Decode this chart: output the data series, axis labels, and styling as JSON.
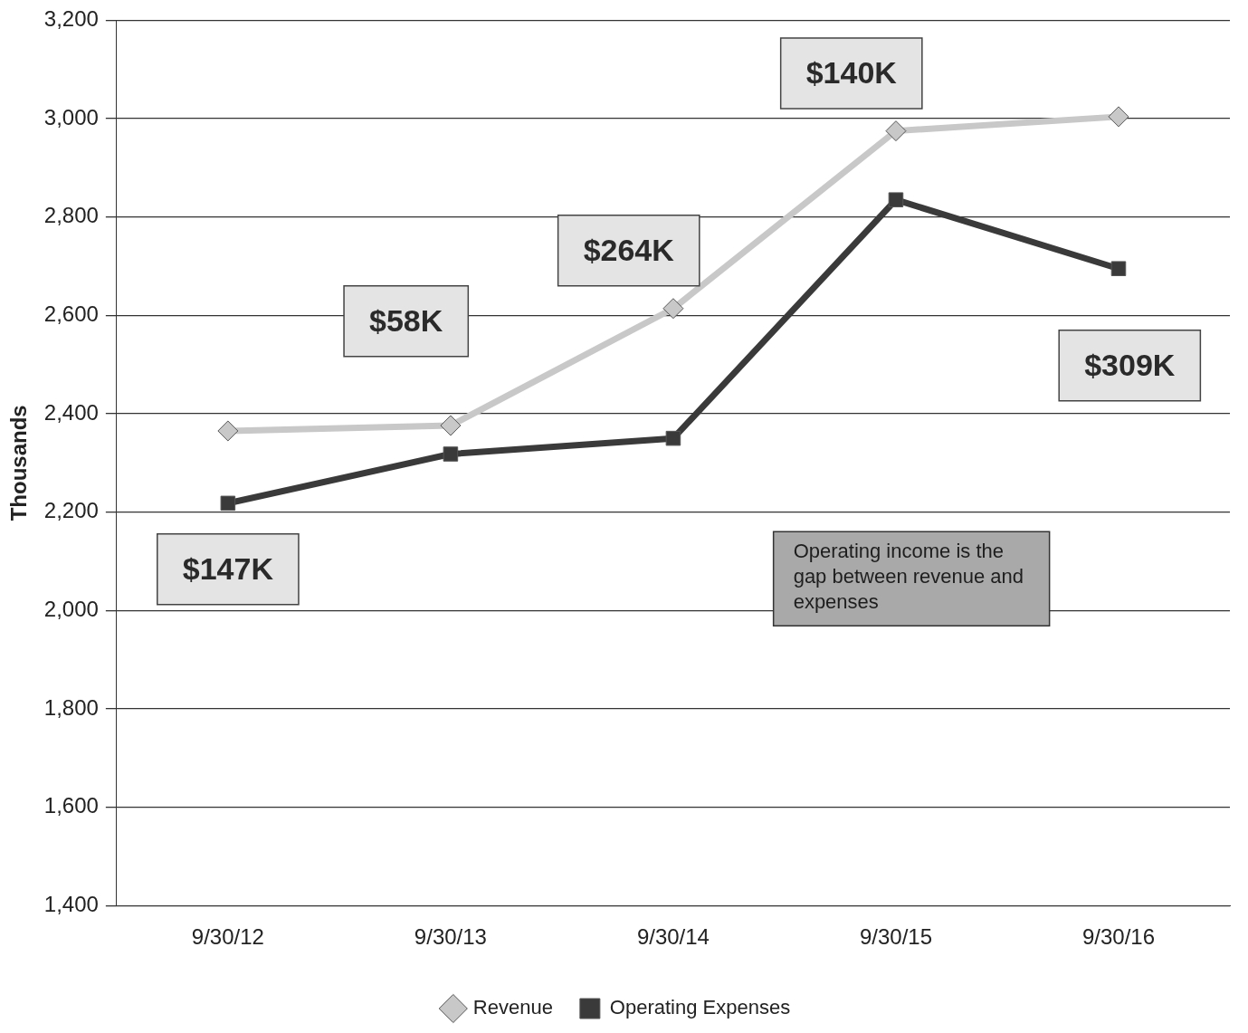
{
  "chart_data": {
    "type": "line",
    "ylabel": "Thousands",
    "categories": [
      "9/30/12",
      "9/30/13",
      "9/30/14",
      "9/30/15",
      "9/30/16"
    ],
    "series": [
      {
        "name": "Revenue",
        "color": "#c8c8c8",
        "marker": "diamond",
        "values": [
          2365,
          2376,
          2614,
          2975,
          3004
        ]
      },
      {
        "name": "Operating Expenses",
        "color": "#3a3a3a",
        "marker": "square",
        "values": [
          2218,
          2318,
          2350,
          2835,
          2695
        ]
      }
    ],
    "ylim": [
      1400,
      3200
    ],
    "yticks": [
      {
        "value": 1400,
        "label": "1,400"
      },
      {
        "value": 1600,
        "label": "1,600"
      },
      {
        "value": 1800,
        "label": "1,800"
      },
      {
        "value": 2000,
        "label": "2,000"
      },
      {
        "value": 2200,
        "label": "2,200"
      },
      {
        "value": 2400,
        "label": "2,400"
      },
      {
        "value": 2600,
        "label": "2,600"
      },
      {
        "value": 2800,
        "label": "2,800"
      },
      {
        "value": 3000,
        "label": "3,000"
      },
      {
        "value": 3200,
        "label": "3,200"
      }
    ],
    "grid": "y",
    "legend": "bottom",
    "annotations": [
      "$147K",
      "$58K",
      "$264K",
      "$140K",
      "$309K",
      "Operating income is the gap between revenue and expenses"
    ]
  }
}
